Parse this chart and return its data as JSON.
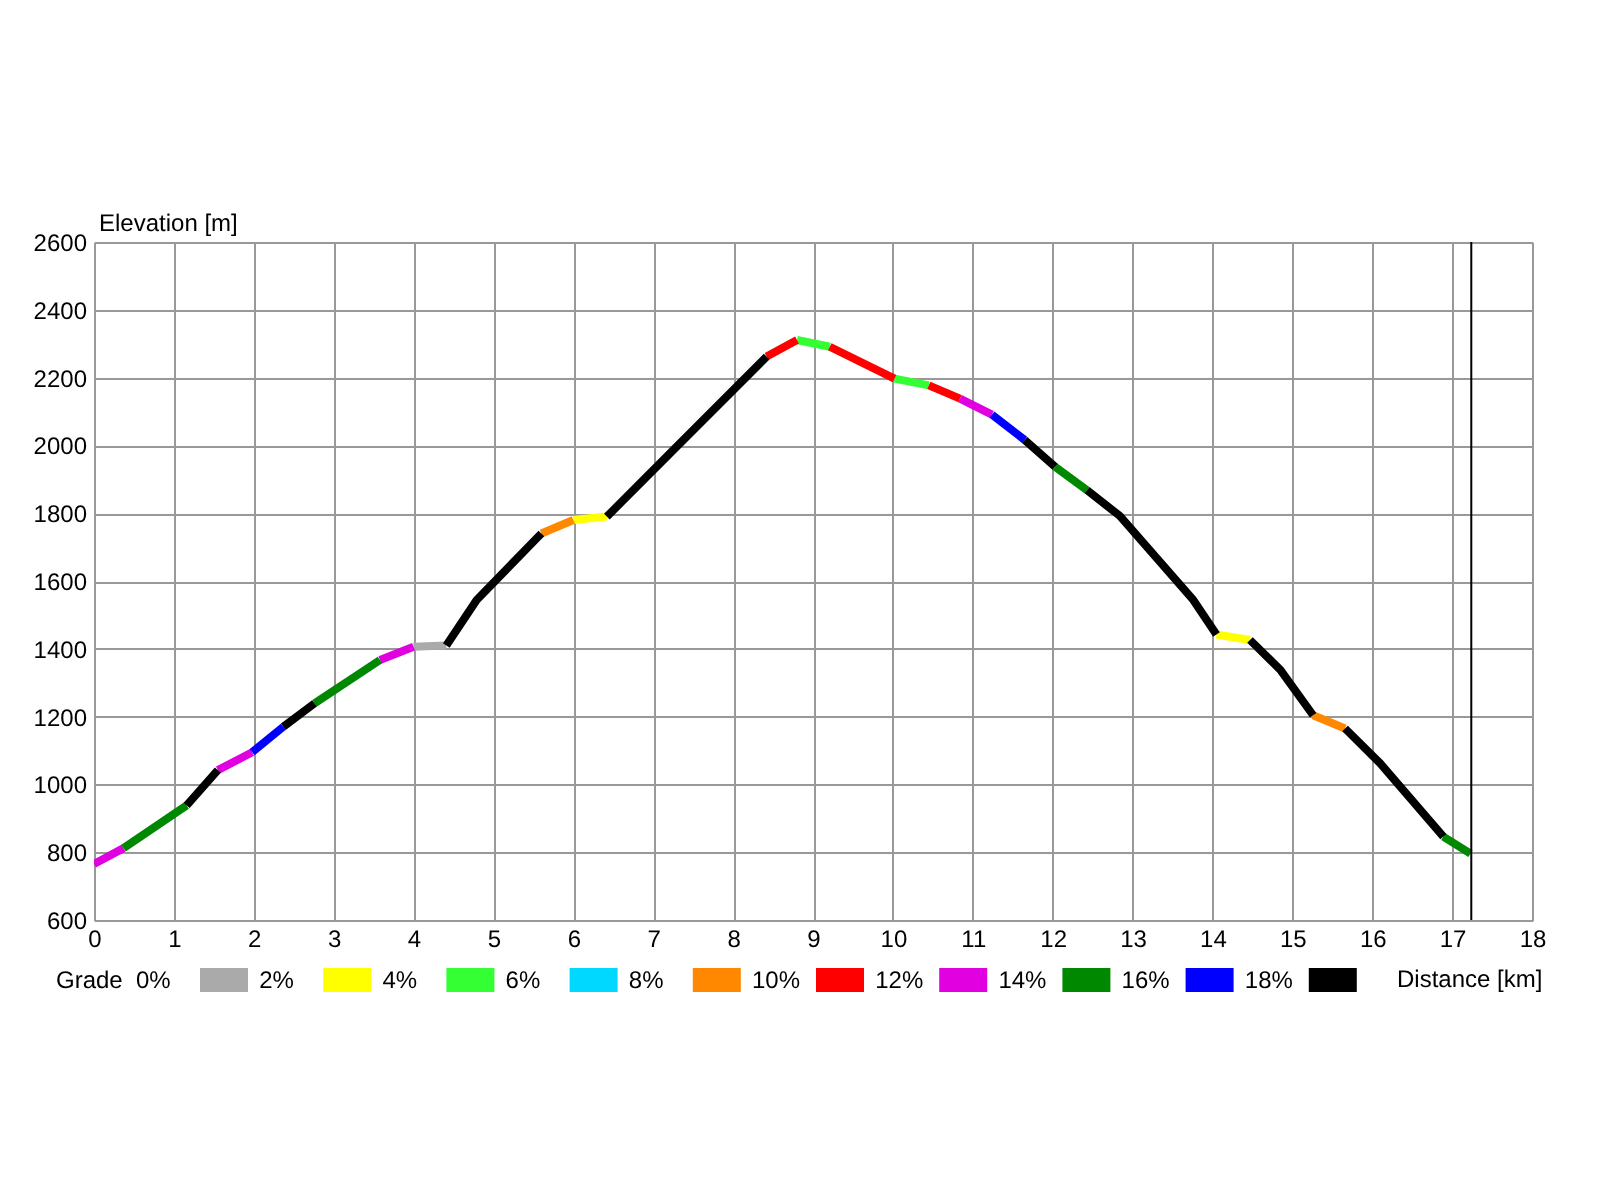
{
  "chart_data": {
    "type": "line",
    "xlabel": "Distance [km]",
    "ylabel": "Elevation [m]",
    "legend_title": "Grade",
    "legend": "bottom",
    "grid": true,
    "xlim": [
      0,
      18
    ],
    "xticks": [
      0,
      1,
      2,
      3,
      4,
      5,
      6,
      7,
      8,
      9,
      10,
      11,
      12,
      13,
      14,
      15,
      16,
      17,
      18
    ],
    "ylim": [
      600,
      2600
    ],
    "yticks": [
      600,
      800,
      1000,
      1200,
      1400,
      1600,
      1800,
      2000,
      2200,
      2400,
      2600
    ],
    "ref_lines": [
      {
        "axis": "x",
        "value": 17.24,
        "color": "#000000"
      }
    ],
    "series": [
      {
        "name": "0%",
        "color": "#aaaaaa",
        "x": [
          4.0,
          4.41
        ],
        "values": [
          1406,
          1410
        ]
      },
      {
        "name": "2%",
        "color": "#ffff00",
        "x": [
          6.0,
          6.42,
          null,
          14.05,
          14.47
        ],
        "values": [
          1780,
          1790,
          null,
          1442,
          1426
        ]
      },
      {
        "name": "4%",
        "color": "#33ff33",
        "x": [
          8.8,
          9.21,
          null,
          10.02,
          10.45
        ],
        "values": [
          2311,
          2291,
          null,
          2197,
          2177
        ]
      },
      {
        "name": "6%",
        "color": "#00d8ff"
      },
      {
        "name": "8%",
        "color": "#ff8800",
        "x": [
          5.6,
          6.0,
          null,
          15.26,
          15.66
        ],
        "values": [
          1740,
          1780,
          null,
          1204,
          1165
        ]
      },
      {
        "name": "10%",
        "color": "#ff0000",
        "x": [
          8.42,
          8.8,
          null,
          9.21,
          10.02,
          null,
          10.45,
          10.84
        ],
        "values": [
          2262,
          2311,
          null,
          2291,
          2197,
          null,
          2177,
          2138
        ]
      },
      {
        "name": "12%",
        "color": "#e000e0",
        "x": [
          0,
          0.37,
          null,
          1.55,
          1.98,
          null,
          3.58,
          4.0,
          null,
          10.84,
          11.24
        ],
        "values": [
          765,
          812,
          null,
          1042,
          1095,
          null,
          1367,
          1406,
          null,
          2138,
          2091
        ]
      },
      {
        "name": "14%",
        "color": "#008800",
        "x": [
          0.37,
          1.16,
          null,
          2.76,
          3.58,
          null,
          12.03,
          12.43,
          null,
          16.89,
          17.23
        ],
        "values": [
          812,
          938,
          null,
          1239,
          1367,
          null,
          1937,
          1868,
          null,
          846,
          796
        ]
      },
      {
        "name": "16%",
        "color": "#0000ff",
        "x": [
          1.98,
          2.37,
          null,
          11.24,
          11.65
        ],
        "values": [
          1095,
          1170,
          null,
          2091,
          2016
        ]
      },
      {
        "name": "18%",
        "color": "#000000",
        "x": [
          1.16,
          1.55,
          null,
          2.37,
          2.76,
          null,
          4.41,
          4.79,
          5.6,
          null,
          6.42,
          7.25,
          8.42,
          null,
          11.65,
          12.03,
          null,
          12.43,
          12.84,
          13.76,
          14.05,
          null,
          14.47,
          14.85,
          15.26,
          null,
          15.66,
          16.1,
          16.89
        ],
        "values": [
          938,
          1042,
          null,
          1170,
          1239,
          null,
          1410,
          1544,
          1740,
          null,
          1790,
          1986,
          2262,
          null,
          2016,
          1937,
          null,
          1868,
          1792,
          1544,
          1442,
          null,
          1426,
          1338,
          1204,
          null,
          1165,
          1062,
          846
        ]
      }
    ]
  }
}
